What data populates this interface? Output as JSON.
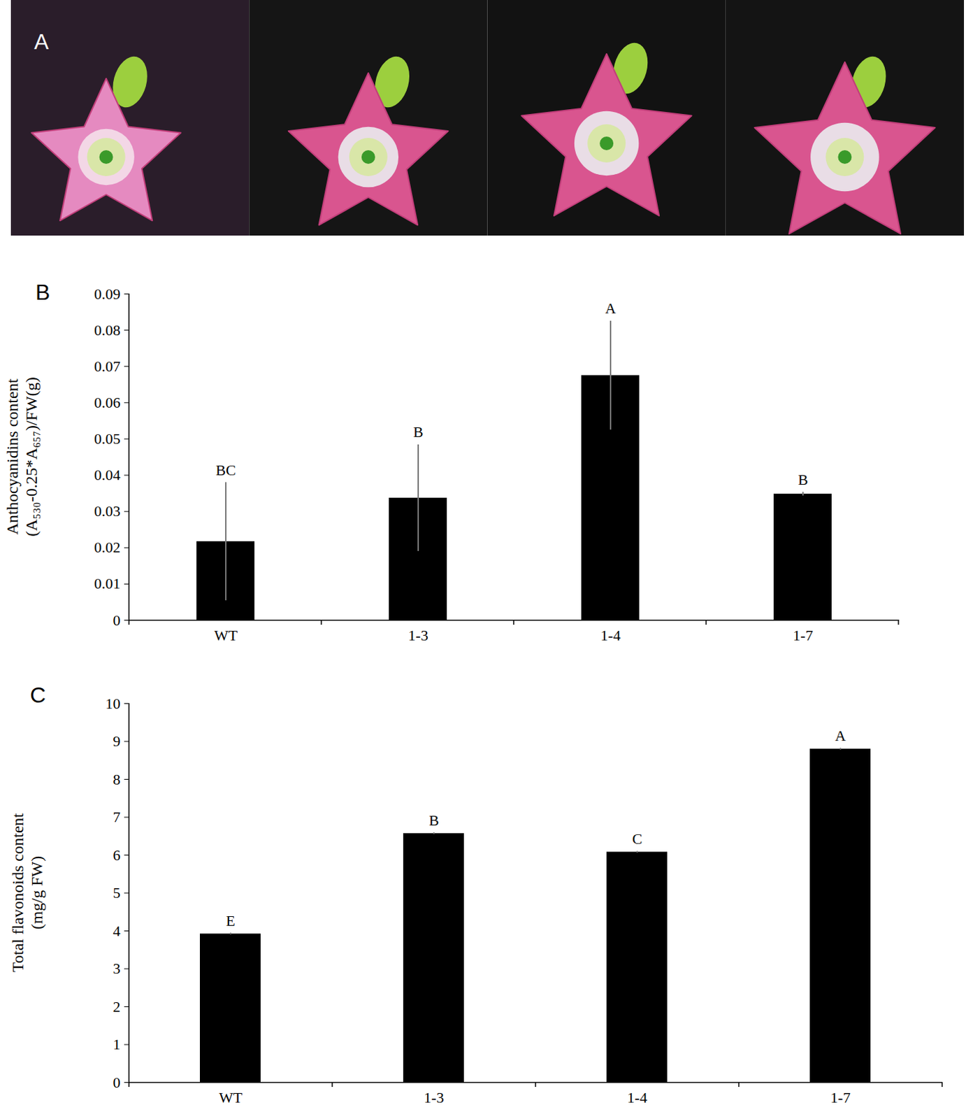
{
  "photo_panel": {
    "label": "A"
  },
  "chart_data": [
    {
      "type": "bar",
      "title": "B",
      "ylabel": [
        "Anthocyanidins content",
        "(A₅₃₀-0.25*A₆₅₇)/FW(g)"
      ],
      "categories": [
        "WT",
        "1-3",
        "1-4",
        "1-7"
      ],
      "values": [
        0.0217,
        0.0337,
        0.0675,
        0.0348
      ],
      "errors": [
        0.0163,
        0.0147,
        0.015,
        0.0005
      ],
      "significance": [
        "BC",
        "B",
        "A",
        "B"
      ],
      "color": "#000000",
      "ylim": [
        0,
        0.09
      ],
      "yticks": [
        0,
        0.01,
        0.02,
        0.03,
        0.04,
        0.05,
        0.06,
        0.07,
        0.08,
        0.09
      ]
    },
    {
      "type": "bar",
      "title": "C",
      "ylabel": [
        "Total flavonoids content",
        "(mg/g FW)"
      ],
      "categories": [
        "WT",
        "1-3",
        "1-4",
        "1-7"
      ],
      "values": [
        3.92,
        6.57,
        6.08,
        8.8
      ],
      "errors": [
        0.02,
        0.02,
        0.02,
        0.02
      ],
      "significance": [
        "E",
        "B",
        "C",
        "A"
      ],
      "color": "#000000",
      "ylim": [
        0,
        10
      ],
      "yticks": [
        0,
        1,
        2,
        3,
        4,
        5,
        6,
        7,
        8,
        9,
        10
      ]
    }
  ]
}
